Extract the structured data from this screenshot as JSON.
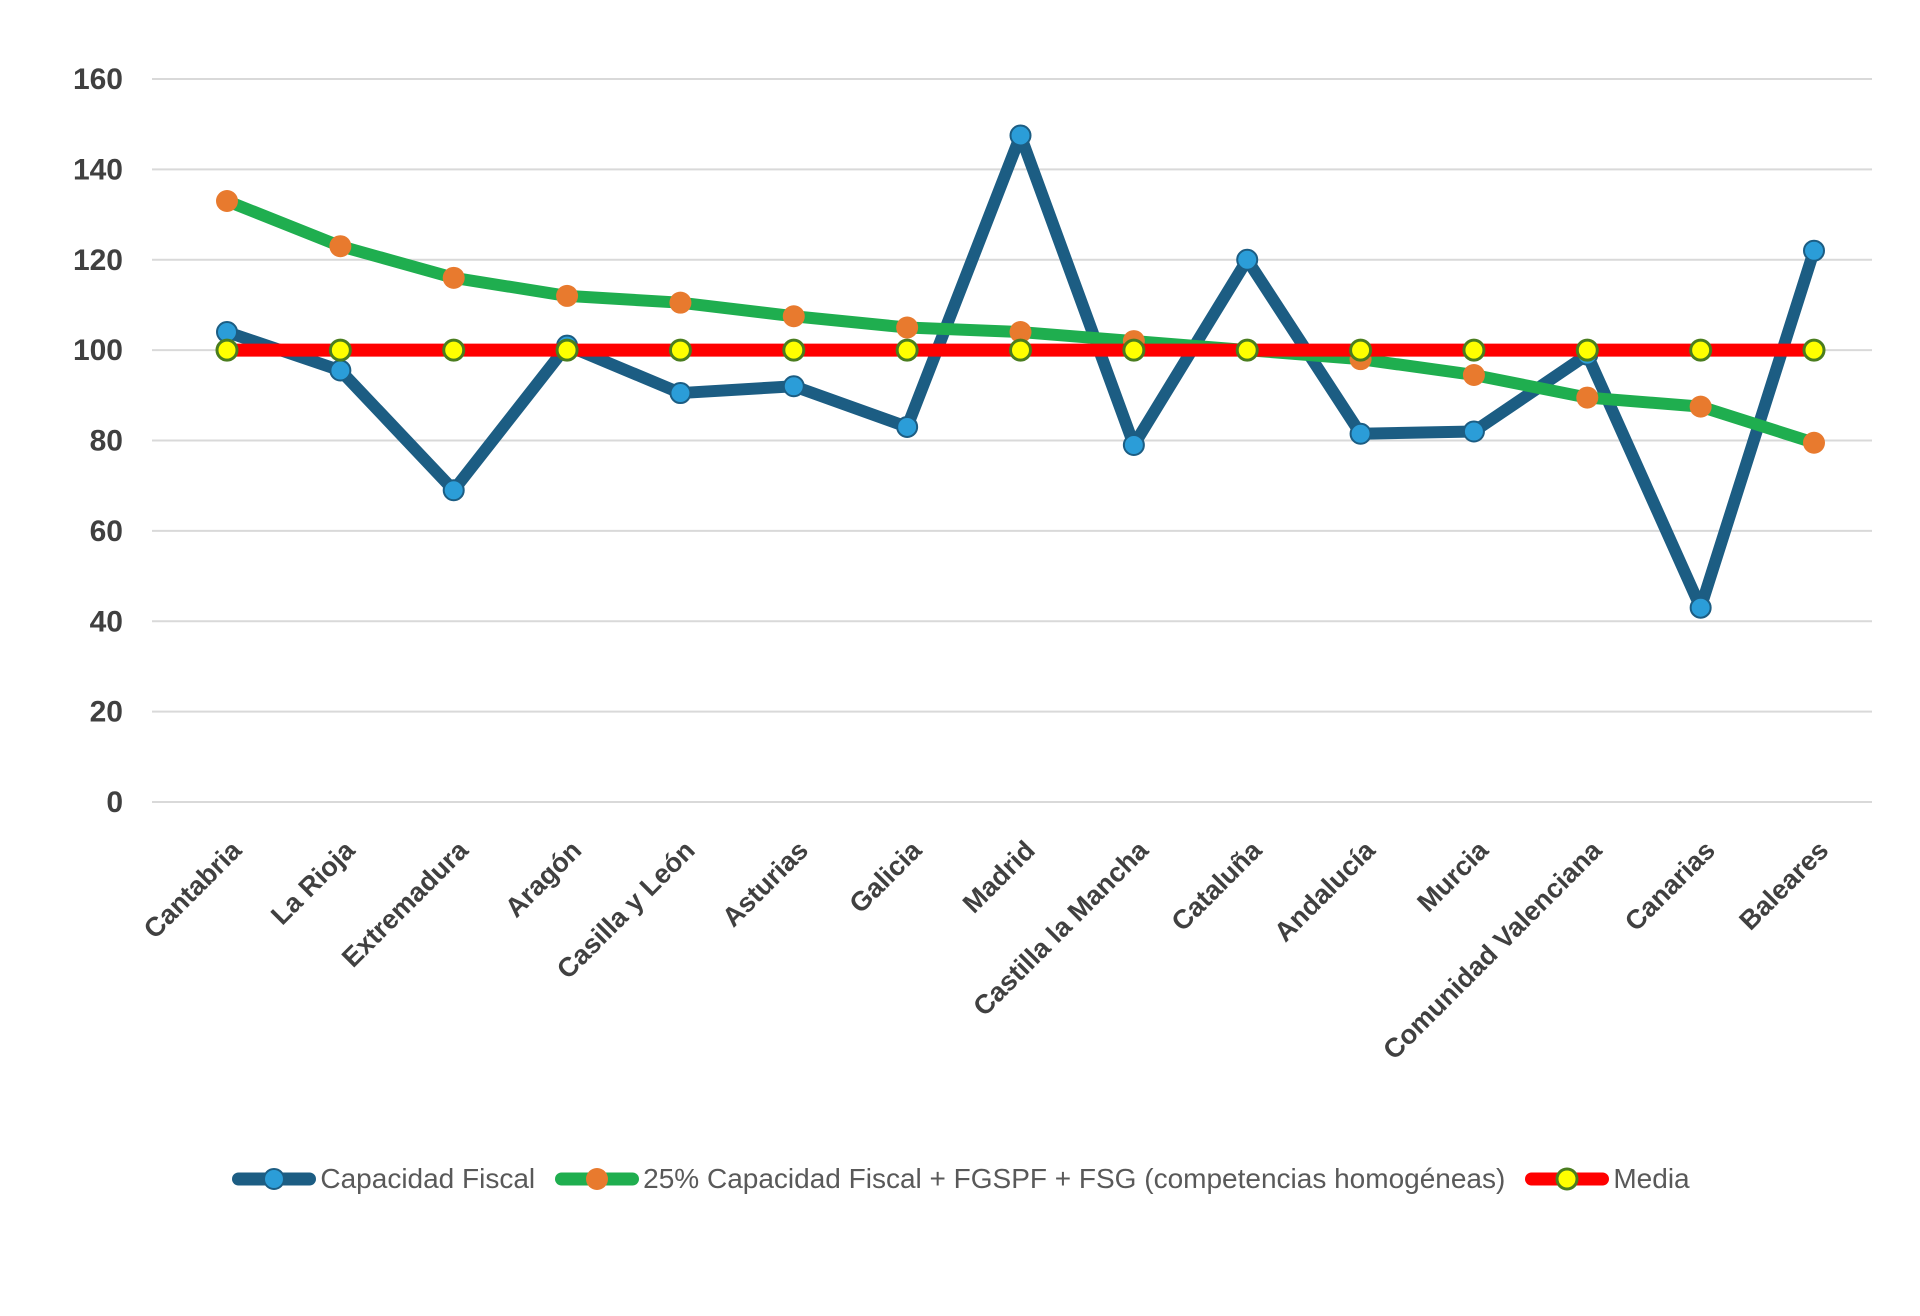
{
  "page": {
    "background_color": "#FFFFFF",
    "text_color_axis": "#404040",
    "text_color_legend": "#595959"
  },
  "chart_data": {
    "type": "line",
    "title": "",
    "xlabel": "",
    "ylabel": "",
    "ylim": [
      0,
      160
    ],
    "ytick_step": 20,
    "yticks": [
      0,
      20,
      40,
      60,
      80,
      100,
      120,
      140,
      160
    ],
    "grid": true,
    "grid_color": "#D9D9D9",
    "legend_position": "bottom",
    "categories": [
      "Cantabria",
      "La Rioja",
      "Extremadura",
      "Aragón",
      "Casilla y León",
      "Asturias",
      "Galicia",
      "Madrid",
      "Castilla la Mancha",
      "Cataluña",
      "Andalucía",
      "Murcia",
      "Comunidad Valenciana",
      "Canarias",
      "Baleares"
    ],
    "series": [
      {
        "id": "capacidad-fiscal",
        "name": "Capacidad Fiscal",
        "line_color": "#1C5D83",
        "line_width": 12,
        "marker_color": "#2B9DD8",
        "marker_stroke": "#1C5D83",
        "marker_stroke_width": 2,
        "marker_radius": 10,
        "values": [
          104,
          95.5,
          69,
          101,
          90.5,
          92,
          83,
          147.5,
          79,
          120,
          81.5,
          82,
          99,
          43,
          122
        ]
      },
      {
        "id": "cf-fgspf-fsg",
        "name": "25% Capacidad Fiscal + FGSPF + FSG (competencias homogéneas)",
        "line_color": "#1FAE4F",
        "line_width": 12,
        "marker_color": "#E87A2E",
        "marker_stroke": "none",
        "marker_stroke_width": 0,
        "marker_radius": 11,
        "values": [
          133,
          123,
          116,
          112,
          110.5,
          107.5,
          105,
          104,
          102,
          100,
          98,
          94.5,
          89.5,
          87.5,
          79.5
        ]
      },
      {
        "id": "media",
        "name": "Media",
        "line_color": "#FF0000",
        "line_width": 13,
        "marker_color": "#FFFF00",
        "marker_stroke": "#4A7D1F",
        "marker_stroke_width": 3,
        "marker_radius": 10,
        "values": [
          100,
          100,
          100,
          100,
          100,
          100,
          100,
          100,
          100,
          100,
          100,
          100,
          100,
          100,
          100
        ]
      }
    ]
  }
}
